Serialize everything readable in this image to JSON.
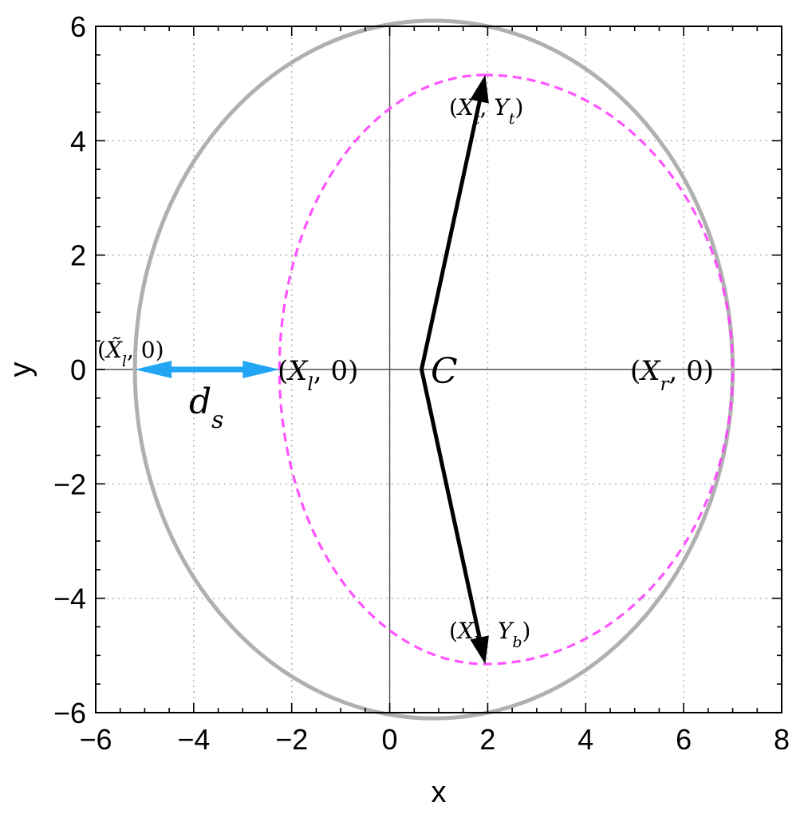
{
  "chart_data": {
    "type": "line",
    "xlabel": "x",
    "ylabel": "y",
    "xlim": [
      -6,
      8
    ],
    "ylim": [
      -6,
      6
    ],
    "xticks": [
      -6,
      -4,
      -2,
      0,
      2,
      4,
      6,
      8
    ],
    "yticks": [
      -6,
      -4,
      -2,
      0,
      2,
      4,
      6
    ],
    "xtick_labels": [
      "−6",
      "−4",
      "−2",
      "0",
      "2",
      "4",
      "6",
      "8"
    ],
    "ytick_labels": [
      "−6",
      "−4",
      "−2",
      "0",
      "2",
      "4",
      "6"
    ],
    "grid": true,
    "grid_style": "dotted",
    "shapes": {
      "circle": {
        "center": [
          0.9,
          0.0
        ],
        "radius": 6.1,
        "color": "#b0b0b0",
        "style": "solid"
      },
      "dashed_curve": {
        "x_left": -2.25,
        "x_right": 7.0,
        "top": [
          1.95,
          5.15
        ],
        "bottom": [
          1.95,
          -5.15
        ],
        "color": "#ff40ff",
        "style": "dashed"
      }
    },
    "arrows": [
      {
        "from": [
          0.65,
          0.0
        ],
        "to": [
          1.95,
          5.15
        ],
        "color": "#000000"
      },
      {
        "from": [
          0.65,
          0.0
        ],
        "to": [
          1.95,
          -5.15
        ],
        "color": "#000000"
      },
      {
        "from": [
          -5.2,
          0.0
        ],
        "to": [
          -2.25,
          0.0
        ],
        "color": "#22a5f5",
        "double": true
      }
    ],
    "annotations": {
      "xl_tilde": "(X̃l, 0)",
      "xl": "(Xl, 0)",
      "xr": "(Xr, 0)",
      "xt": "(Xt, Yt)",
      "xb": "(Xb, Yb)",
      "c": "C",
      "ds": "ds"
    }
  }
}
